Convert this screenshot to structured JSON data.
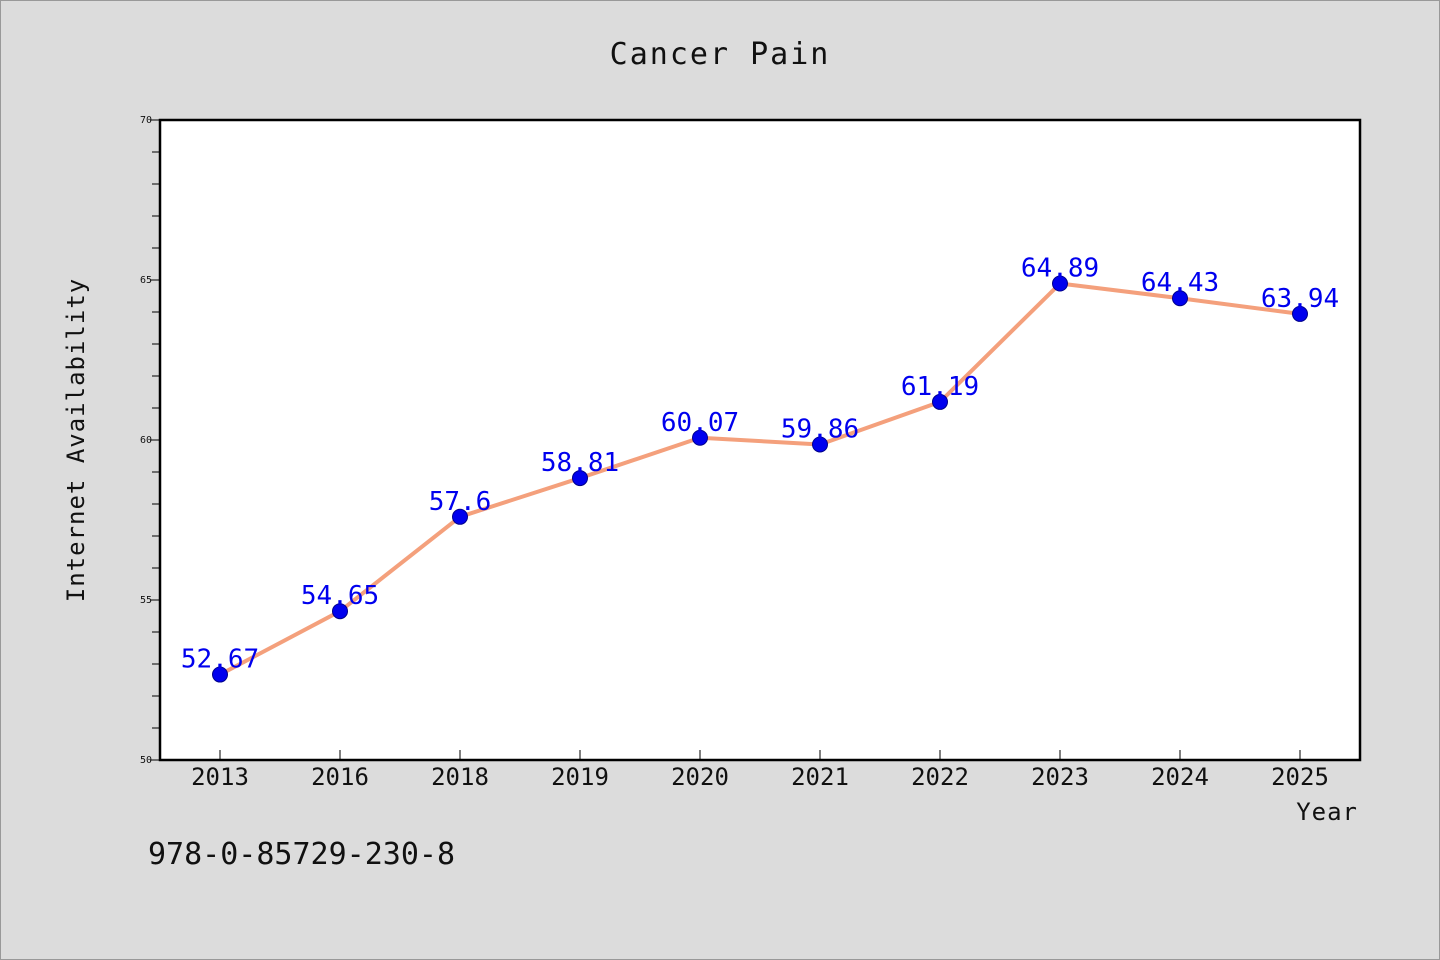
{
  "chart_data": {
    "type": "line",
    "title": "Cancer Pain",
    "xlabel": "Year",
    "ylabel": "Internet Availability",
    "categories": [
      "2013",
      "2016",
      "2018",
      "2019",
      "2020",
      "2021",
      "2022",
      "2023",
      "2024",
      "2025"
    ],
    "series": [
      {
        "values": [
          52.67,
          54.65,
          57.6,
          58.81,
          60.07,
          59.86,
          61.19,
          64.89,
          64.43,
          63.94
        ],
        "labels": [
          "52.67",
          "54.65",
          "57.6",
          "58.81",
          "60.07",
          "59.86",
          "61.19",
          "64.89",
          "64.43",
          "63.94"
        ],
        "line_color": "#f4a07c",
        "marker_color": "#0000ee"
      }
    ],
    "ylim": [
      50,
      70
    ],
    "yticks_major": [
      "50",
      "55",
      "60",
      "65",
      "70"
    ],
    "ytick_values": [
      50,
      55,
      60,
      65,
      70
    ],
    "grid": false,
    "background_color": "#dcdcdc",
    "plot_background_color": "#ffffff"
  },
  "footer": {
    "isbn": "978-0-85729-230-8"
  }
}
